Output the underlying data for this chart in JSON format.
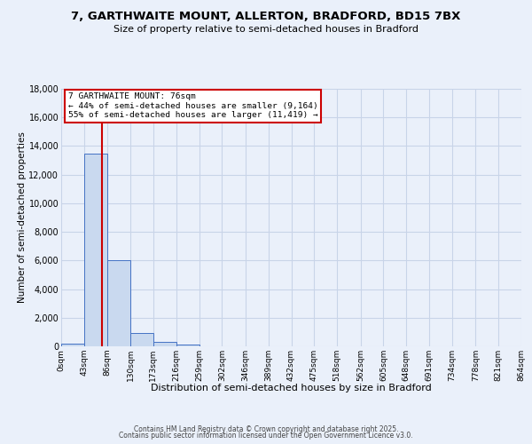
{
  "title": "7, GARTHWAITE MOUNT, ALLERTON, BRADFORD, BD15 7BX",
  "subtitle": "Size of property relative to semi-detached houses in Bradford",
  "xlabel": "Distribution of semi-detached houses by size in Bradford",
  "ylabel": "Number of semi-detached properties",
  "bin_edges": [
    0,
    43,
    86,
    130,
    173,
    216,
    259,
    302,
    346,
    389,
    432,
    475,
    518,
    562,
    605,
    648,
    691,
    734,
    778,
    821,
    864
  ],
  "bin_counts": [
    200,
    13500,
    6000,
    950,
    300,
    100,
    0,
    0,
    0,
    0,
    0,
    0,
    0,
    0,
    0,
    0,
    0,
    0,
    0,
    0
  ],
  "bar_color": "#c9d9ef",
  "bar_edge_color": "#4472c4",
  "vline_color": "#cc0000",
  "vline_x": 76,
  "annotation_title": "7 GARTHWAITE MOUNT: 76sqm",
  "annotation_line1": "← 44% of semi-detached houses are smaller (9,164)",
  "annotation_line2": "55% of semi-detached houses are larger (11,419) →",
  "annotation_box_color": "#ffffff",
  "annotation_box_edge": "#cc0000",
  "ylim": [
    0,
    18000
  ],
  "yticks": [
    0,
    2000,
    4000,
    6000,
    8000,
    10000,
    12000,
    14000,
    16000,
    18000
  ],
  "xtick_labels": [
    "0sqm",
    "43sqm",
    "86sqm",
    "130sqm",
    "173sqm",
    "216sqm",
    "259sqm",
    "302sqm",
    "346sqm",
    "389sqm",
    "432sqm",
    "475sqm",
    "518sqm",
    "562sqm",
    "605sqm",
    "648sqm",
    "691sqm",
    "734sqm",
    "778sqm",
    "821sqm",
    "864sqm"
  ],
  "grid_color": "#c8d4e8",
  "bg_color": "#eaf0fa",
  "footer1": "Contains HM Land Registry data © Crown copyright and database right 2025.",
  "footer2": "Contains public sector information licensed under the Open Government Licence v3.0."
}
